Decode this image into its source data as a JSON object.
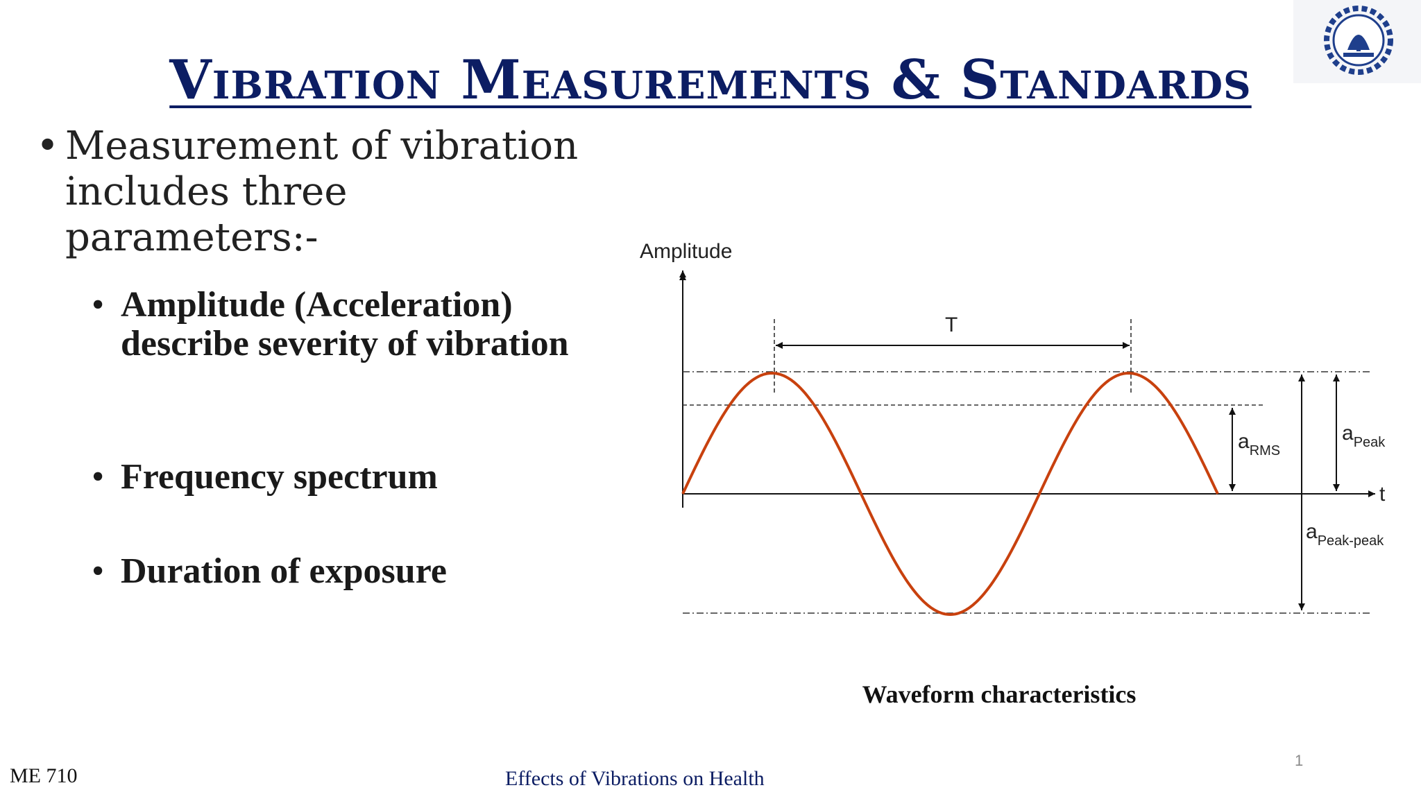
{
  "slide": {
    "title": "Vibration Measurements & Standards",
    "bullet": "Measurement of vibration includes three parameters:-",
    "sub_bullets": [
      "Amplitude (Acceleration) describe severity of vibration",
      "Frequency spectrum",
      "Duration of exposure"
    ],
    "caption": "Waveform characteristics",
    "footer_left": "ME 710",
    "footer_center": "Effects of Vibrations on Health",
    "page_number": "1",
    "logo_icon": "institute-emblem-icon"
  },
  "diagram": {
    "y_axis_label": "Amplitude",
    "x_axis_label": "t",
    "period_label": "T",
    "rms_label": {
      "base": "a",
      "sub": "RMS"
    },
    "peak_label": {
      "base": "a",
      "sub": "Peak"
    },
    "peak_peak_label": {
      "base": "a",
      "sub": "Peak-peak"
    },
    "wave_color": "#c8410e",
    "line_color": "#111111"
  }
}
